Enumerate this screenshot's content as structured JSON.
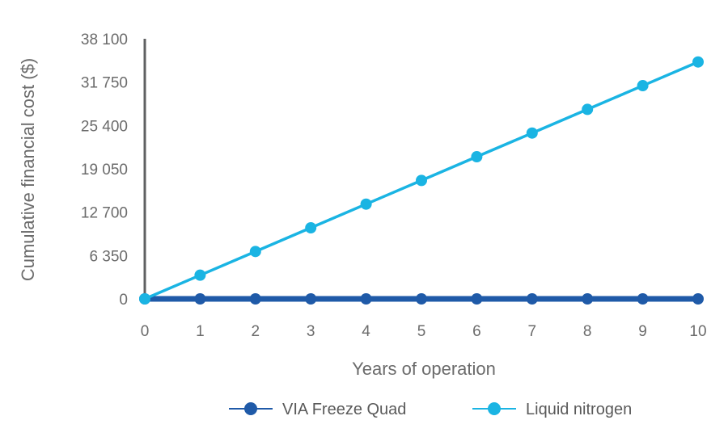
{
  "chart_data": {
    "type": "line",
    "title": "",
    "xlabel": "Years of operation",
    "ylabel": "Cumulative financial cost ($)",
    "x": [
      0,
      1,
      2,
      3,
      4,
      5,
      6,
      7,
      8,
      9,
      10
    ],
    "x_tick_labels": [
      "0",
      "1",
      "2",
      "3",
      "4",
      "5",
      "6",
      "7",
      "8",
      "9",
      "10"
    ],
    "y_ticks": [
      0,
      6350,
      12700,
      19050,
      25400,
      31750,
      38100
    ],
    "y_tick_labels": [
      "0",
      "6 350",
      "12 700",
      "19 050",
      "25 400",
      "31 750",
      "38 100"
    ],
    "ylim": [
      0,
      38100
    ],
    "xlim": [
      0,
      10
    ],
    "grid": false,
    "legend_position": "bottom",
    "series": [
      {
        "name": "VIA Freeze Quad",
        "color": "#1f5aa8",
        "values": [
          0,
          0,
          0,
          0,
          0,
          0,
          0,
          0,
          0,
          0,
          0
        ]
      },
      {
        "name": "Liquid nitrogen",
        "color": "#1ab4e3",
        "values": [
          0,
          3470,
          6940,
          10410,
          13880,
          17350,
          20820,
          24290,
          27760,
          31230,
          34700
        ]
      }
    ]
  },
  "axis_color": "#5f6062"
}
